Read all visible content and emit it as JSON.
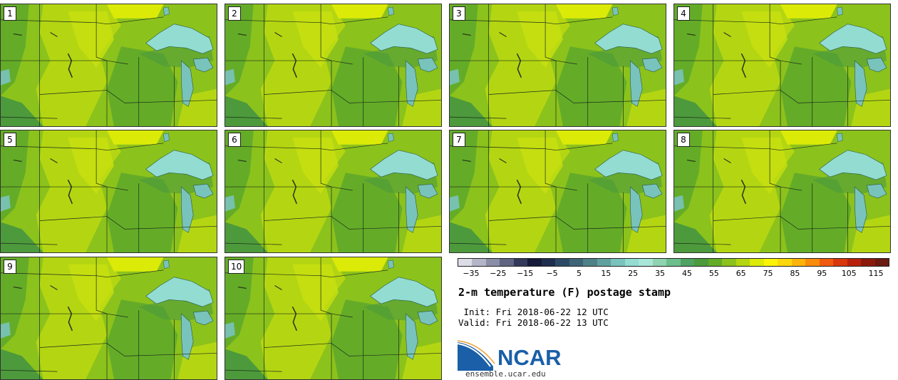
{
  "panels": [
    {
      "label": "1"
    },
    {
      "label": "2"
    },
    {
      "label": "3"
    },
    {
      "label": "4"
    },
    {
      "label": "5"
    },
    {
      "label": "6"
    },
    {
      "label": "7"
    },
    {
      "label": "8"
    },
    {
      "label": "9"
    },
    {
      "label": "10"
    }
  ],
  "legend": {
    "colors": [
      "#dcdde6",
      "#b4b6c8",
      "#8a8ea6",
      "#5e6482",
      "#33395a",
      "#141a38",
      "#1e2e4e",
      "#2c4a66",
      "#3e6478",
      "#4f8188",
      "#62a0a0",
      "#79c3bd",
      "#92dcd2",
      "#a8e6d8",
      "#8ed4b0",
      "#6cbe8c",
      "#4ea262",
      "#4c9a3c",
      "#64ac28",
      "#8cc21c",
      "#b4d612",
      "#dcea08",
      "#fcf404",
      "#fcd80a",
      "#fcb40a",
      "#f88c0c",
      "#f05a0c",
      "#d8380c",
      "#b8220c",
      "#8c1a0c",
      "#6a1a10"
    ],
    "ticks": [
      "−35",
      "−25",
      "−15",
      "−5",
      "5",
      "15",
      "25",
      "35",
      "45",
      "55",
      "65",
      "75",
      "85",
      "95",
      "105",
      "115"
    ]
  },
  "title": "2-m temperature (F) postage stamp",
  "init_text": " Init: Fri 2018-06-22 12 UTC",
  "valid_text": "Valid: Fri 2018-06-22 13 UTC",
  "logo_text": "NCAR",
  "site": "ensemble.ucar.edu"
}
